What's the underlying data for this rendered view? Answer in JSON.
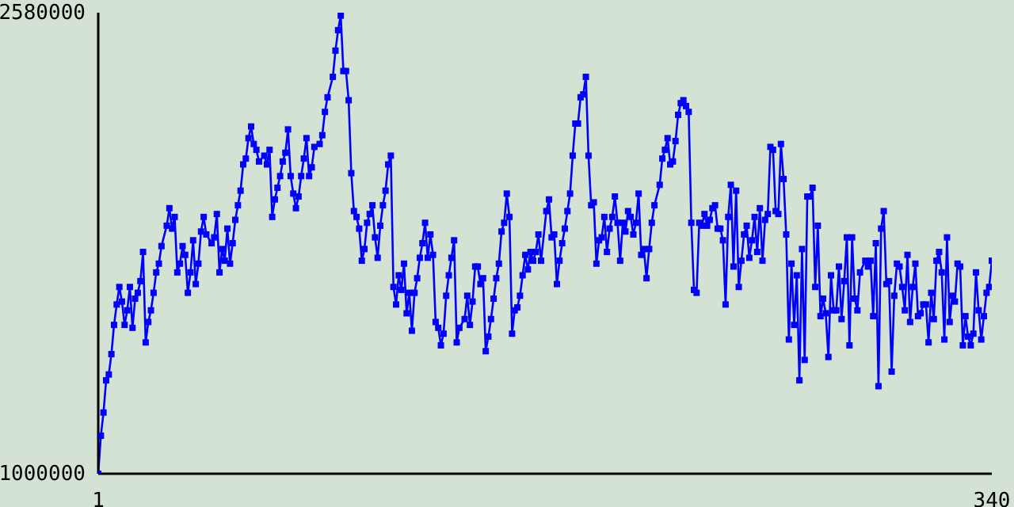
{
  "chart_data": {
    "type": "line",
    "color": "#0000ff",
    "marker": "square",
    "line_style": "solid",
    "grid": false,
    "legend": false,
    "xlim": [
      1,
      340
    ],
    "xticks": [
      1,
      340
    ],
    "ylim": [
      1000000,
      2580000
    ],
    "yticks": [
      1000000,
      2580000
    ],
    "x": [
      1,
      2,
      3,
      4,
      5,
      6,
      7,
      8,
      9,
      10,
      11,
      12,
      13,
      14,
      15,
      16,
      17,
      18,
      19,
      20,
      21,
      22,
      23,
      24,
      25,
      27,
      28,
      29,
      30,
      31,
      32,
      33,
      34,
      35,
      36,
      37,
      38,
      39,
      40,
      41,
      42,
      44,
      45,
      46,
      47,
      48,
      49,
      50,
      51,
      52,
      53,
      54,
      55,
      56,
      57,
      58,
      59,
      60,
      61,
      62,
      64,
      65,
      66,
      67,
      68,
      69,
      70,
      71,
      72,
      73,
      74,
      75,
      76,
      77,
      78,
      79,
      80,
      81,
      82,
      83,
      85,
      86,
      87,
      88,
      90,
      91,
      92,
      93,
      94,
      95,
      96,
      97,
      98,
      99,
      100,
      101,
      102,
      103,
      104,
      105,
      106,
      107,
      108,
      109,
      110,
      111,
      112,
      113,
      114,
      115,
      116,
      117,
      118,
      119,
      120,
      121,
      122,
      123,
      124,
      125,
      126,
      127,
      128,
      129,
      130,
      131,
      132,
      133,
      134,
      135,
      136,
      137,
      138,
      140,
      141,
      142,
      143,
      144,
      145,
      146,
      147,
      148,
      149,
      150,
      151,
      152,
      153,
      154,
      155,
      156,
      157,
      158,
      159,
      160,
      161,
      162,
      163,
      164,
      165,
      166,
      167,
      168,
      169,
      171,
      172,
      173,
      174,
      175,
      176,
      177,
      178,
      179,
      180,
      181,
      182,
      183,
      184,
      185,
      186,
      187,
      188,
      189,
      190,
      191,
      192,
      193,
      194,
      195,
      196,
      197,
      198,
      199,
      200,
      201,
      202,
      203,
      204,
      205,
      206,
      207,
      208,
      209,
      210,
      211,
      212,
      214,
      215,
      216,
      217,
      218,
      219,
      220,
      221,
      222,
      223,
      224,
      225,
      226,
      227,
      228,
      229,
      230,
      231,
      232,
      233,
      234,
      235,
      236,
      237,
      238,
      239,
      240,
      241,
      242,
      243,
      244,
      245,
      246,
      247,
      248,
      249,
      250,
      251,
      252,
      253,
      254,
      255,
      256,
      257,
      258,
      259,
      260,
      261,
      262,
      263,
      264,
      265,
      266,
      267,
      268,
      269,
      270,
      271,
      272,
      273,
      274,
      275,
      276,
      277,
      278,
      279,
      280,
      281,
      282,
      283,
      284,
      285,
      286,
      287,
      288,
      289,
      290,
      292,
      293,
      294,
      295,
      296,
      297,
      298,
      299,
      300,
      301,
      302,
      303,
      304,
      305,
      306,
      307,
      308,
      309,
      310,
      311,
      312,
      313,
      314,
      315,
      316,
      317,
      318,
      319,
      320,
      321,
      322,
      323,
      324,
      325,
      326,
      327,
      328,
      329,
      330,
      331,
      332,
      333,
      334,
      335,
      336,
      337,
      338,
      339,
      340
    ],
    "values": [
      1000000,
      1130000,
      1210000,
      1320000,
      1340000,
      1410000,
      1510000,
      1580000,
      1640000,
      1590000,
      1510000,
      1560000,
      1640000,
      1500000,
      1600000,
      1620000,
      1660000,
      1760000,
      1450000,
      1520000,
      1560000,
      1620000,
      1690000,
      1720000,
      1780000,
      1850000,
      1910000,
      1840000,
      1880000,
      1690000,
      1720000,
      1780000,
      1750000,
      1620000,
      1690000,
      1800000,
      1650000,
      1720000,
      1830000,
      1880000,
      1820000,
      1790000,
      1810000,
      1890000,
      1690000,
      1770000,
      1730000,
      1840000,
      1720000,
      1790000,
      1870000,
      1920000,
      1970000,
      2060000,
      2080000,
      2150000,
      2190000,
      2130000,
      2110000,
      2070000,
      2090000,
      2060000,
      2110000,
      1880000,
      1940000,
      1980000,
      2020000,
      2070000,
      2100000,
      2180000,
      2020000,
      1960000,
      1910000,
      1950000,
      2020000,
      2080000,
      2150000,
      2020000,
      2050000,
      2120000,
      2130000,
      2160000,
      2240000,
      2290000,
      2360000,
      2450000,
      2520000,
      2570000,
      2380000,
      2380000,
      2280000,
      2030000,
      1900000,
      1880000,
      1840000,
      1730000,
      1770000,
      1860000,
      1890000,
      1920000,
      1810000,
      1740000,
      1850000,
      1920000,
      1970000,
      2060000,
      2090000,
      1640000,
      1580000,
      1680000,
      1630000,
      1720000,
      1550000,
      1620000,
      1490000,
      1620000,
      1670000,
      1740000,
      1790000,
      1860000,
      1740000,
      1820000,
      1750000,
      1520000,
      1500000,
      1440000,
      1480000,
      1610000,
      1680000,
      1740000,
      1800000,
      1450000,
      1500000,
      1530000,
      1610000,
      1510000,
      1590000,
      1710000,
      1710000,
      1650000,
      1670000,
      1420000,
      1470000,
      1530000,
      1600000,
      1670000,
      1720000,
      1830000,
      1860000,
      1960000,
      1880000,
      1480000,
      1560000,
      1570000,
      1610000,
      1680000,
      1750000,
      1700000,
      1760000,
      1730000,
      1760000,
      1820000,
      1730000,
      1900000,
      1940000,
      1810000,
      1820000,
      1650000,
      1730000,
      1790000,
      1840000,
      1900000,
      1960000,
      2090000,
      2200000,
      2200000,
      2290000,
      2300000,
      2360000,
      2090000,
      1920000,
      1930000,
      1720000,
      1800000,
      1810000,
      1880000,
      1760000,
      1840000,
      1880000,
      1950000,
      1860000,
      1730000,
      1860000,
      1830000,
      1900000,
      1880000,
      1820000,
      1860000,
      1960000,
      1750000,
      1770000,
      1670000,
      1770000,
      1860000,
      1920000,
      1990000,
      2080000,
      2110000,
      2150000,
      2060000,
      2070000,
      2140000,
      2230000,
      2270000,
      2280000,
      2260000,
      2240000,
      1860000,
      1630000,
      1620000,
      1860000,
      1850000,
      1890000,
      1850000,
      1870000,
      1910000,
      1920000,
      1840000,
      1840000,
      1800000,
      1580000,
      1880000,
      1990000,
      1710000,
      1970000,
      1640000,
      1730000,
      1820000,
      1850000,
      1740000,
      1800000,
      1880000,
      1760000,
      1910000,
      1730000,
      1870000,
      1890000,
      2120000,
      2110000,
      1900000,
      1890000,
      2130000,
      2010000,
      1820000,
      1460000,
      1720000,
      1510000,
      1680000,
      1320000,
      1770000,
      1390000,
      1950000,
      1950000,
      1980000,
      1640000,
      1850000,
      1540000,
      1600000,
      1550000,
      1400000,
      1680000,
      1560000,
      1560000,
      1710000,
      1530000,
      1660000,
      1810000,
      1440000,
      1810000,
      1600000,
      1560000,
      1690000,
      1730000,
      1710000,
      1730000,
      1540000,
      1790000,
      1300000,
      1840000,
      1900000,
      1650000,
      1660000,
      1350000,
      1610000,
      1720000,
      1710000,
      1640000,
      1560000,
      1750000,
      1520000,
      1640000,
      1720000,
      1540000,
      1550000,
      1580000,
      1580000,
      1450000,
      1620000,
      1530000,
      1730000,
      1760000,
      1690000,
      1460000,
      1810000,
      1520000,
      1610000,
      1590000,
      1720000,
      1710000,
      1440000,
      1540000,
      1470000,
      1440000,
      1480000,
      1690000,
      1560000,
      1460000,
      1540000,
      1620000,
      1640000,
      1730000
    ]
  }
}
